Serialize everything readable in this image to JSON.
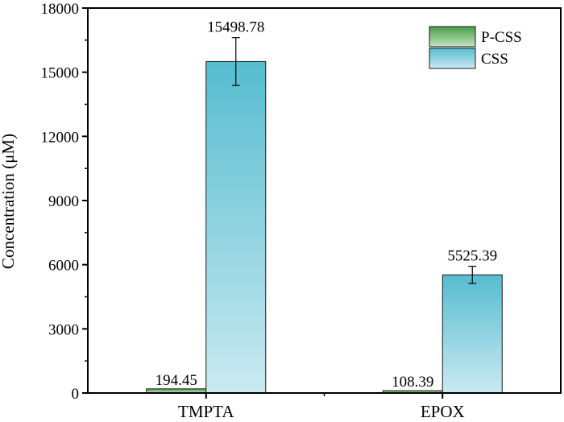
{
  "chart_data": {
    "type": "bar",
    "title": "",
    "xlabel": "",
    "ylabel": "Concentration (μM)",
    "ylim": [
      0,
      18000
    ],
    "yticks": [
      0,
      3000,
      6000,
      9000,
      12000,
      15000,
      18000
    ],
    "categories": [
      "TMPTA",
      "EPOX"
    ],
    "series": [
      {
        "name": "P-CSS",
        "values": [
          194.45,
          108.39
        ],
        "labels": [
          "194.45",
          "108.39"
        ],
        "errors": [
          0,
          0
        ],
        "color_top": "#4a9e4a",
        "color_bottom": "#bfe5bf"
      },
      {
        "name": "CSS",
        "values": [
          15498.78,
          5525.39
        ],
        "labels": [
          "15498.78",
          "5525.39"
        ],
        "errors": [
          1120,
          400
        ],
        "color_top": "#56bcd0",
        "color_bottom": "#c9eaf1"
      }
    ],
    "legend_position": "top-right",
    "grid": false
  }
}
